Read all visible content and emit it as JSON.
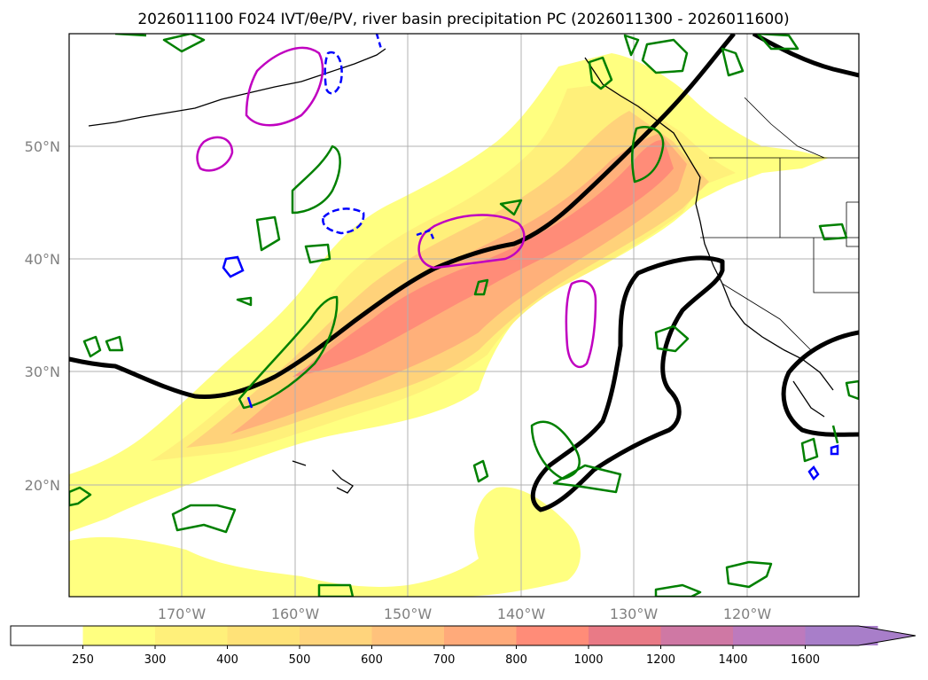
{
  "title": "2026011100 F024 IVT/θe/PV, river basin precipitation PC (2026011300 - 2026011600)",
  "map": {
    "lat_labels": [
      "50°N",
      "40°N",
      "30°N",
      "20°N"
    ],
    "lon_labels": [
      "170°W",
      "160°W",
      "150°W",
      "140°W",
      "130°W",
      "120°W"
    ]
  },
  "colorbar": {
    "ticks": [
      "250",
      "300",
      "400",
      "500",
      "600",
      "700",
      "800",
      "1000",
      "1200",
      "1400",
      "1600"
    ],
    "colors": [
      "#ffffff",
      "#ffff80",
      "#fff07a",
      "#ffe278",
      "#ffd47c",
      "#ffc27c",
      "#ffaa7a",
      "#ff8c78",
      "#e97a86",
      "#cf78a4",
      "#bd7abd",
      "#a87ec9"
    ]
  },
  "colors": {
    "ivt_fill_low": "#ffff80",
    "ivt_fill_mid": "#ffd27a",
    "ivt_fill_high": "#ff8c78",
    "theta_e_contour": "#000000",
    "pv_contour": "#c000c0",
    "green_contour": "#008000",
    "blue_contour": "#0000ff"
  }
}
